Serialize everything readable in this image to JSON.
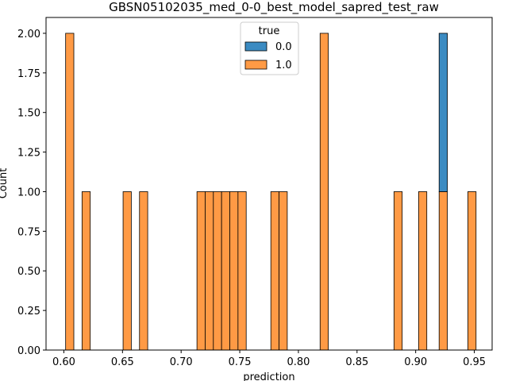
{
  "chart_data": {
    "type": "bar",
    "title": "GBSN05102035_med_0-0_best_model_sapred_test_raw",
    "xlabel": "prediction",
    "ylabel": "Count",
    "xlim": [
      0.5848,
      0.9652
    ],
    "ylim": [
      0,
      2.1
    ],
    "bin_width": 0.007,
    "xticks": [
      "0.60",
      "0.65",
      "0.70",
      "0.75",
      "0.80",
      "0.85",
      "0.90",
      "0.95"
    ],
    "xtick_values": [
      0.6,
      0.65,
      0.7,
      0.75,
      0.8,
      0.85,
      0.9,
      0.95
    ],
    "yticks": [
      "0.00",
      "0.25",
      "0.50",
      "0.75",
      "1.00",
      "1.25",
      "1.50",
      "1.75",
      "2.00"
    ],
    "ytick_values": [
      0,
      0.25,
      0.5,
      0.75,
      1.0,
      1.25,
      1.5,
      1.75,
      2.0
    ],
    "grid": false,
    "legend": {
      "title": "true",
      "placement": "top-center"
    },
    "series": [
      {
        "name": "0.0",
        "color": "#3b8bc2",
        "bins": [
          {
            "x0": 0.92,
            "value": 1
          }
        ]
      },
      {
        "name": "1.0",
        "color": "#ff9a45",
        "bins": [
          {
            "x0": 0.6015,
            "value": 2
          },
          {
            "x0": 0.6155,
            "value": 1
          },
          {
            "x0": 0.6505,
            "value": 1
          },
          {
            "x0": 0.6645,
            "value": 1
          },
          {
            "x0": 0.7135,
            "value": 1
          },
          {
            "x0": 0.7205,
            "value": 1
          },
          {
            "x0": 0.7275,
            "value": 1
          },
          {
            "x0": 0.7345,
            "value": 1
          },
          {
            "x0": 0.7415,
            "value": 1
          },
          {
            "x0": 0.7485,
            "value": 1
          },
          {
            "x0": 0.7765,
            "value": 1
          },
          {
            "x0": 0.7835,
            "value": 1
          },
          {
            "x0": 0.8185,
            "value": 2
          },
          {
            "x0": 0.8815,
            "value": 1
          },
          {
            "x0": 0.9025,
            "value": 1
          },
          {
            "x0": 0.92,
            "value": 1
          },
          {
            "x0": 0.9445,
            "value": 1
          }
        ]
      }
    ]
  }
}
